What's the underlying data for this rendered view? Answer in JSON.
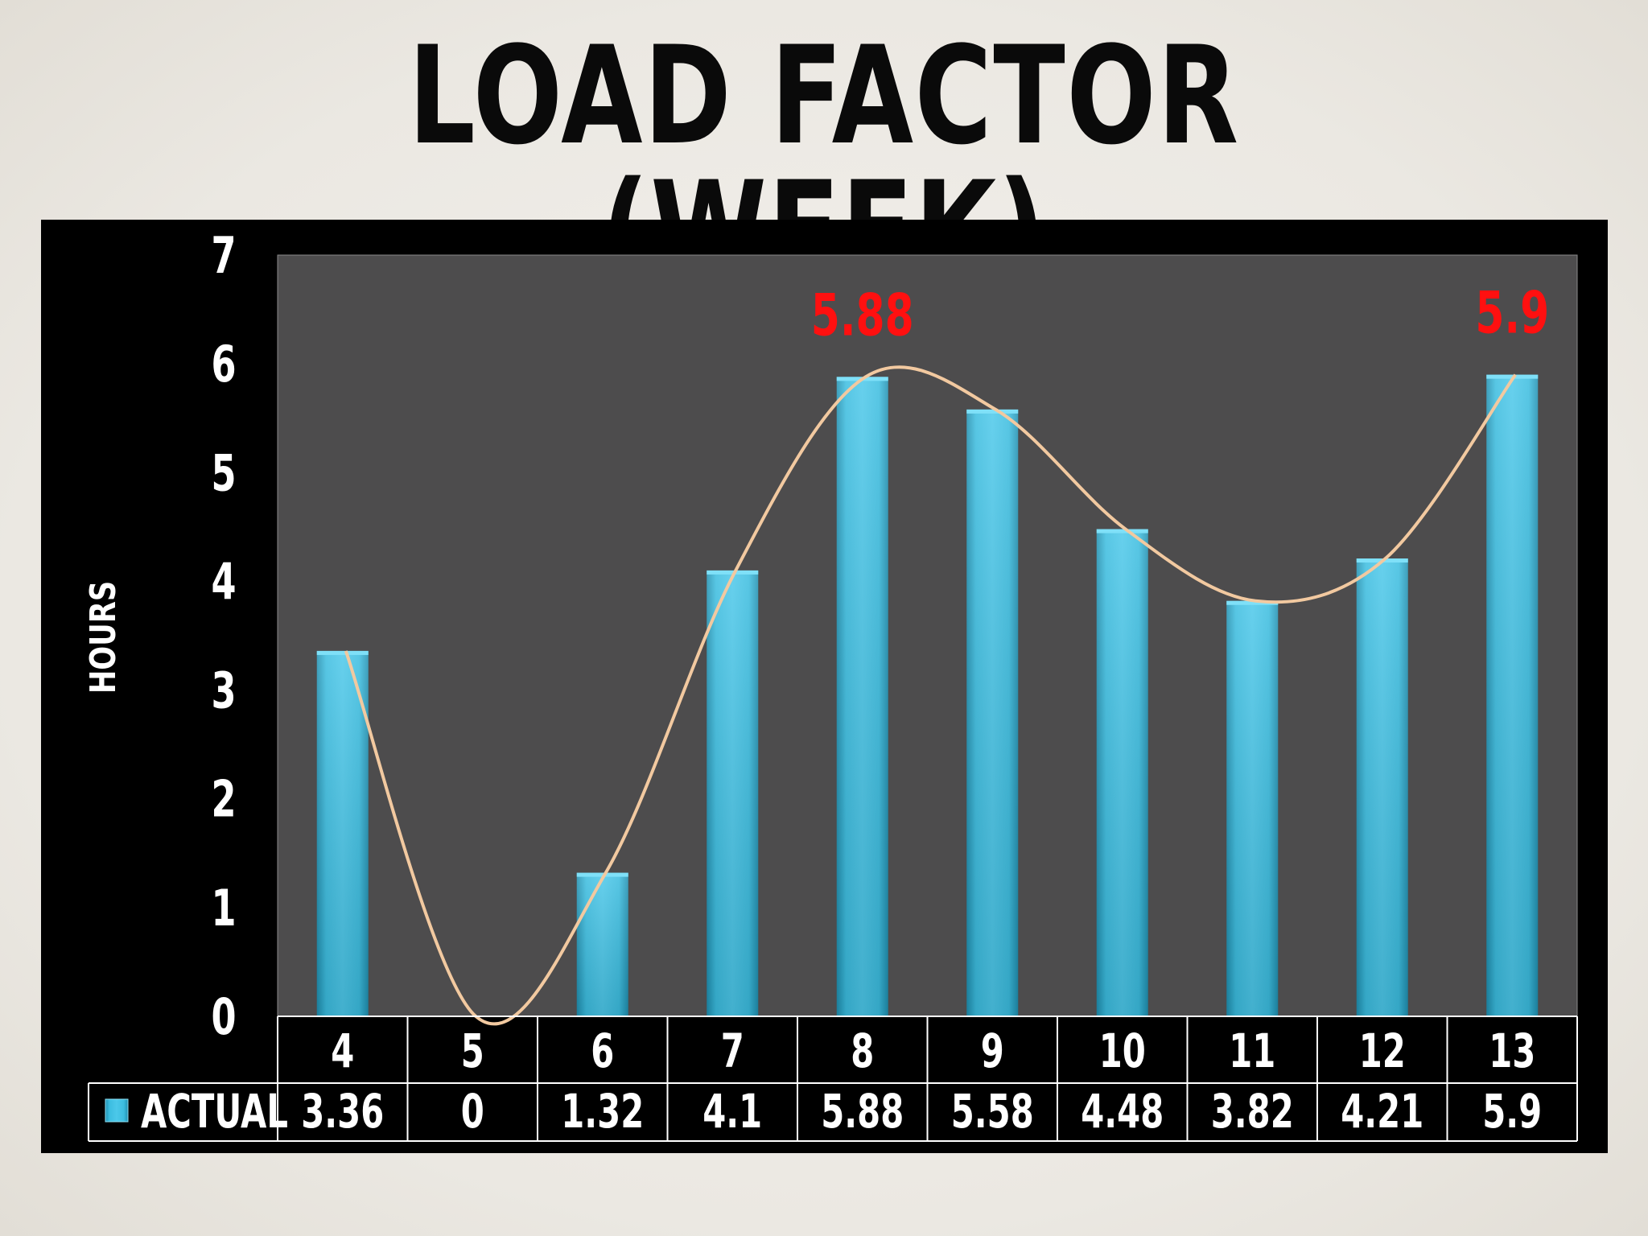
{
  "title": "LOAD FACTOR (WEEK)",
  "chart_data": {
    "type": "bar",
    "categories": [
      "4",
      "5",
      "6",
      "7",
      "8",
      "9",
      "10",
      "11",
      "12",
      "13"
    ],
    "series": [
      {
        "name": "ACTUAL",
        "values": [
          3.36,
          0,
          1.32,
          4.1,
          5.88,
          5.58,
          4.48,
          3.82,
          4.21,
          5.9
        ]
      }
    ],
    "trendline": "smooth",
    "ylabel": "HOURS",
    "ylim": [
      0,
      7
    ],
    "yticks": [
      0,
      1,
      2,
      3,
      4,
      5,
      6,
      7
    ],
    "data_table": true,
    "annotations": [
      {
        "text": "5.88",
        "category": "8",
        "value": 5.88
      },
      {
        "text": "5.9",
        "category": "13",
        "value": 5.9
      }
    ],
    "colors": {
      "bar": "#3bbde0",
      "bar_dark": "#1f8fb0",
      "trendline": "#f2c9a0",
      "annotation": "#ff1010",
      "plot_bg": "#4d4c4d",
      "panel_bg": "#000000"
    }
  }
}
